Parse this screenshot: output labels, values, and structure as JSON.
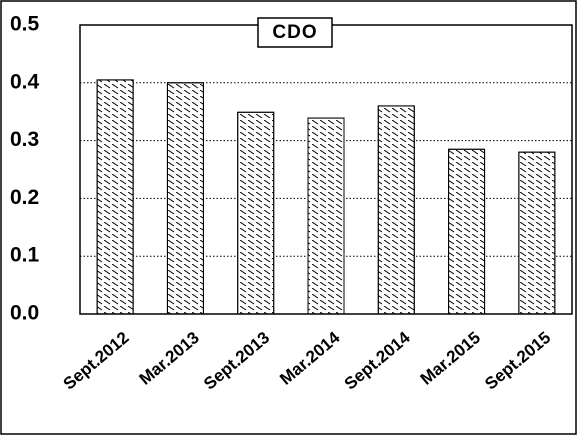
{
  "chart_data": {
    "type": "bar",
    "title": "CDO",
    "categories": [
      "Sept.2012",
      "Mar.2013",
      "Sept.2013",
      "Mar.2014",
      "Sept.2014",
      "Mar.2015",
      "Sept.2015"
    ],
    "values": [
      0.405,
      0.4,
      0.349,
      0.339,
      0.36,
      0.285,
      0.28
    ],
    "color": "#ffffff",
    "ylim": [
      0,
      0.5
    ],
    "yticks": [
      {
        "value": 0,
        "label": "0.0"
      },
      0.1,
      0.2,
      0.3,
      0.4,
      0.5
    ],
    "grid": true
  }
}
